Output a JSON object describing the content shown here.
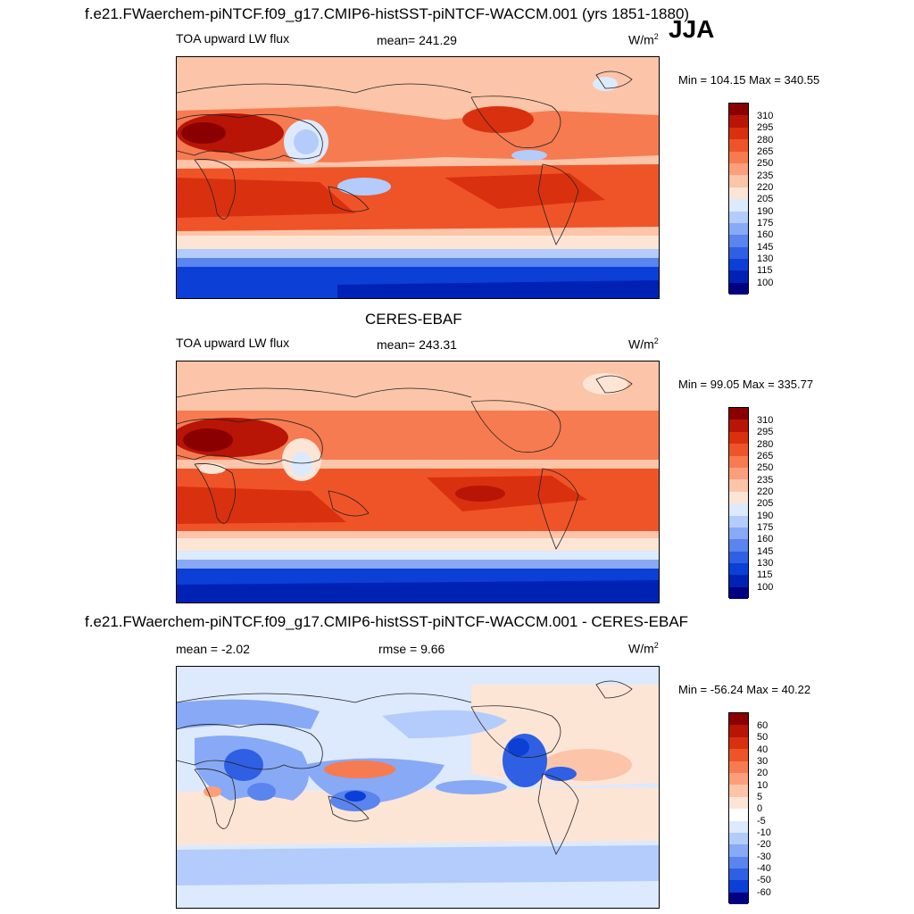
{
  "season": "JJA",
  "colors": {
    "levels15": [
      "#000080",
      "#0022b4",
      "#0b3fd6",
      "#2f5fe3",
      "#5a84ee",
      "#88a9f5",
      "#b3ccfb",
      "#dde9fd",
      "#fde5d6",
      "#fcc4a8",
      "#fb9f7b",
      "#f67b51",
      "#ef5428",
      "#d9310f",
      "#b81506",
      "#8a0000"
    ],
    "diff16": [
      "#000080",
      "#0022b4",
      "#0b3fd6",
      "#2f5fe3",
      "#5a84ee",
      "#88a9f5",
      "#b3ccfb",
      "#dde9fd",
      "#ffffff",
      "#fde5d6",
      "#fcc4a8",
      "#fb9f7b",
      "#f67b51",
      "#ef5428",
      "#d9310f",
      "#b81506",
      "#8a0000"
    ]
  },
  "panels": [
    {
      "title": "f.e21.FWaerchem-piNTCF.f09_g17.CMIP6-histSST-piNTCF-WACCM.001 (yrs 1851-1880)",
      "left_label": "TOA upward LW flux",
      "center_label": "mean= 241.29",
      "units": "W/m",
      "units_sup": "2",
      "minmax": "Min = 104.15 Max = 340.55",
      "cbar_labels": [
        "310",
        "295",
        "280",
        "265",
        "250",
        "235",
        "220",
        "205",
        "190",
        "175",
        "160",
        "145",
        "130",
        "115",
        "100"
      ]
    },
    {
      "title": "CERES-EBAF",
      "left_label": "TOA upward LW flux",
      "center_label": "mean= 243.31",
      "units": "W/m",
      "units_sup": "2",
      "minmax": "Min =  99.05 Max = 335.77",
      "cbar_labels": [
        "310",
        "295",
        "280",
        "265",
        "250",
        "235",
        "220",
        "205",
        "190",
        "175",
        "160",
        "145",
        "130",
        "115",
        "100"
      ]
    },
    {
      "title": "f.e21.FWaerchem-piNTCF.f09_g17.CMIP6-histSST-piNTCF-WACCM.001 - CERES-EBAF",
      "left_label": "mean =  -2.02",
      "center_label": "rmse =   9.66",
      "units": "W/m",
      "units_sup": "2",
      "minmax": "Min = -56.24 Max =  40.22",
      "cbar_labels": [
        "60",
        "50",
        "40",
        "30",
        "20",
        "10",
        "5",
        "0",
        "-5",
        "-10",
        "-20",
        "-30",
        "-40",
        "-50",
        "-60"
      ]
    }
  ]
}
